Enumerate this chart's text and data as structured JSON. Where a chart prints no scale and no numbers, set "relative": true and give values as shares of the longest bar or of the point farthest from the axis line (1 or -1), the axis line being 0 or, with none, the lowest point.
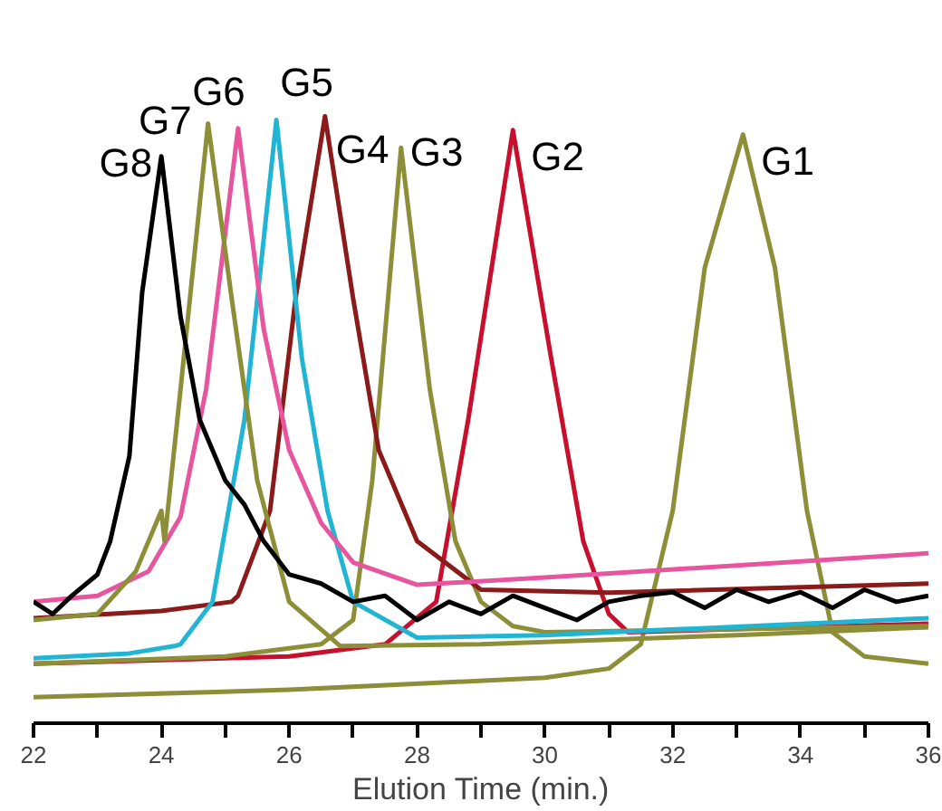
{
  "chart_data": {
    "type": "line",
    "relative": true,
    "xlabel": "Elution Time (min.)",
    "xlim": [
      22,
      36
    ],
    "xticks": [
      22,
      {
        "value": 23,
        "label": null
      },
      24,
      {
        "value": 25,
        "label": null
      },
      26,
      {
        "value": 27,
        "label": null
      },
      28,
      {
        "value": 29,
        "label": null
      },
      30,
      {
        "value": 31,
        "label": null
      },
      32,
      {
        "value": 33,
        "label": null
      },
      34,
      {
        "value": 35,
        "label": null
      },
      36
    ],
    "grid": false,
    "marker": "none",
    "line_style": "solid",
    "series": [
      {
        "name": "G1",
        "color": "#8d8f38",
        "x": [
          22,
          26,
          30,
          31,
          31.5,
          32,
          32.5,
          33.1,
          33.6,
          34.1,
          34.5,
          35,
          36
        ],
        "values": [
          0.043,
          0.055,
          0.075,
          0.09,
          0.13,
          0.35,
          0.75,
          0.97,
          0.75,
          0.35,
          0.15,
          0.11,
          0.098
        ]
      },
      {
        "name": "G2",
        "color": "#c8102e",
        "x": [
          22,
          26,
          27.5,
          28.3,
          28.8,
          29.5,
          30.1,
          30.6,
          31.0,
          31.3,
          33,
          36
        ],
        "values": [
          0.098,
          0.11,
          0.13,
          0.2,
          0.5,
          0.977,
          0.6,
          0.3,
          0.18,
          0.15,
          0.155,
          0.164
        ]
      },
      {
        "name": "G3",
        "color": "#8d8f38",
        "x": [
          22,
          25,
          26.5,
          27,
          27.3,
          27.75,
          28.2,
          28.6,
          29,
          29.5,
          30,
          33,
          36
        ],
        "values": [
          0.098,
          0.11,
          0.13,
          0.17,
          0.4,
          0.948,
          0.55,
          0.3,
          0.2,
          0.16,
          0.15,
          0.155,
          0.16
        ]
      },
      {
        "name": "G4",
        "color": "#8b1a1a",
        "x": [
          22,
          24,
          25.1,
          25.2,
          25.7,
          26.1,
          26.56,
          27,
          27.4,
          28,
          29,
          31,
          36
        ],
        "values": [
          0.173,
          0.185,
          0.2,
          0.21,
          0.35,
          0.7,
          1.0,
          0.7,
          0.45,
          0.3,
          0.22,
          0.215,
          0.23
        ]
      },
      {
        "name": "G5",
        "color": "#22b5d3",
        "x": [
          22,
          23.5,
          24.2,
          24.3,
          24.8,
          25.3,
          25.8,
          26.2,
          26.6,
          27,
          28,
          30,
          36
        ],
        "values": [
          0.107,
          0.115,
          0.127,
          0.13,
          0.2,
          0.5,
          0.994,
          0.6,
          0.35,
          0.2,
          0.141,
          0.145,
          0.173
        ]
      },
      {
        "name": "G6",
        "color": "#e8559f",
        "x": [
          22,
          23,
          23.8,
          24.3,
          24.7,
          25.2,
          25.6,
          26,
          26.5,
          27,
          28,
          30,
          33,
          36
        ],
        "values": [
          0.2,
          0.21,
          0.25,
          0.34,
          0.55,
          0.98,
          0.65,
          0.45,
          0.33,
          0.265,
          0.228,
          0.24,
          0.26,
          0.28
        ]
      },
      {
        "name": "G7",
        "color": "#8d8f38",
        "x": [
          22,
          23,
          23.6,
          24,
          24.05,
          24.3,
          24.73,
          25.1,
          25.5,
          26,
          26.8,
          29,
          33,
          36
        ],
        "values": [
          0.17,
          0.18,
          0.25,
          0.35,
          0.3,
          0.55,
          0.988,
          0.7,
          0.4,
          0.2,
          0.127,
          0.13,
          0.145,
          0.158
        ]
      },
      {
        "name": "G8",
        "color": "#000000",
        "x": [
          22,
          22.3,
          22.6,
          23,
          23.2,
          23.5,
          23.7,
          24,
          24.3,
          24.6,
          24.8,
          25,
          25.3,
          25.6,
          26,
          26.5,
          27,
          27.5,
          28,
          28.5,
          29,
          29.5,
          30,
          30.5,
          31,
          31.5,
          32,
          32.5,
          33,
          33.5,
          34,
          34.5,
          35,
          35.5,
          36
        ],
        "values": [
          0.2,
          0.18,
          0.21,
          0.245,
          0.3,
          0.44,
          0.71,
          0.934,
          0.67,
          0.5,
          0.45,
          0.4,
          0.36,
          0.3,
          0.245,
          0.23,
          0.2,
          0.21,
          0.17,
          0.2,
          0.18,
          0.21,
          0.19,
          0.17,
          0.2,
          0.21,
          0.216,
          0.19,
          0.22,
          0.2,
          0.216,
          0.19,
          0.22,
          0.2,
          0.21
        ]
      }
    ]
  }
}
